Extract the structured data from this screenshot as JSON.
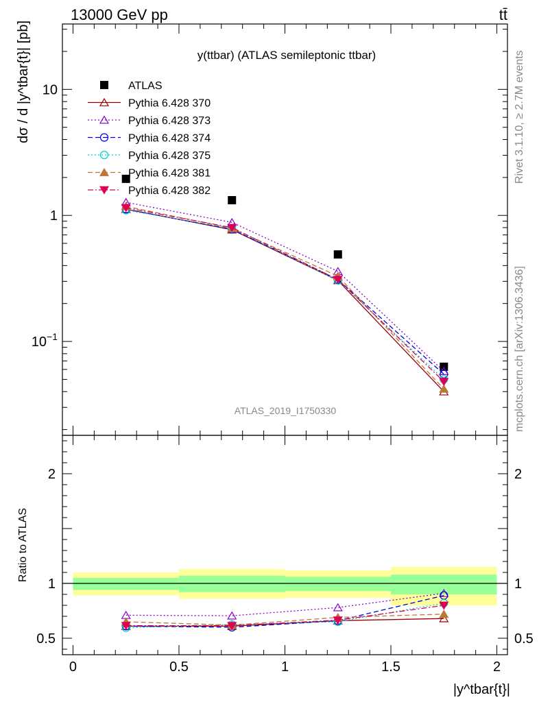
{
  "header": {
    "left": "13000 GeV pp",
    "right": "tt̄"
  },
  "side_text": {
    "rivet": "Rivet 3.1.10, ≥ 2.7M events",
    "site": "mcplots.cern.ch [arXiv:1306.3436]"
  },
  "chart_data": [
    {
      "type": "scatter",
      "title": "y(ttbar) (ATLAS semileptonic ttbar)",
      "watermark": "ATLAS_2019_I1750330",
      "ylabel": "dσ / d |y^tbar{t}| [pb]",
      "yscale": "log",
      "ylim": [
        0.018,
        33
      ],
      "xlim": [
        -0.05,
        2.05
      ],
      "yticks": [
        {
          "value": 0.1,
          "label": "10^-1"
        },
        {
          "value": 1,
          "label": "1"
        },
        {
          "value": 10,
          "label": "10"
        }
      ],
      "x": [
        0.25,
        0.75,
        1.25,
        1.75
      ],
      "series": [
        {
          "name": "ATLAS",
          "color": "#000000",
          "marker": "square-filled",
          "line": "none",
          "values": [
            1.95,
            1.32,
            0.49,
            0.063
          ]
        },
        {
          "name": "Pythia 6.428 370",
          "color": "#990000",
          "marker": "triangle-open",
          "line": "solid",
          "values": [
            1.12,
            0.77,
            0.305,
            0.04
          ]
        },
        {
          "name": "Pythia 6.428 373",
          "color": "#8800cc",
          "marker": "triangle-open",
          "line": "dotted",
          "values": [
            1.27,
            0.88,
            0.36,
            0.058
          ]
        },
        {
          "name": "Pythia 6.428 374",
          "color": "#0000dd",
          "marker": "circle-open",
          "line": "dashed",
          "values": [
            1.12,
            0.775,
            0.31,
            0.055
          ]
        },
        {
          "name": "Pythia 6.428 375",
          "color": "#00cccc",
          "marker": "circle-open",
          "line": "dotted",
          "values": [
            1.1,
            0.79,
            0.305,
            0.05
          ]
        },
        {
          "name": "Pythia 6.428 381",
          "color": "#bb7733",
          "marker": "triangle-filled",
          "line": "dashed",
          "values": [
            1.18,
            0.79,
            0.33,
            0.042
          ]
        },
        {
          "name": "Pythia 6.428 382",
          "color": "#dd0055",
          "marker": "triangle-down-filled",
          "line": "dashdot",
          "values": [
            1.15,
            0.8,
            0.31,
            0.048
          ]
        }
      ],
      "legend": "top-left"
    },
    {
      "type": "scatter",
      "ylabel": "Ratio to ATLAS",
      "xlabel": "|y^tbar{t}|",
      "ylim": [
        0.35,
        2.35
      ],
      "xlim": [
        -0.05,
        2.05
      ],
      "yticks": [
        {
          "value": 0.5,
          "label": "0.5"
        },
        {
          "value": 1,
          "label": "1"
        },
        {
          "value": 2,
          "label": "2"
        }
      ],
      "xticks": [
        {
          "value": 0,
          "label": "0"
        },
        {
          "value": 0.5,
          "label": "0.5"
        },
        {
          "value": 1,
          "label": "1"
        },
        {
          "value": 1.5,
          "label": "1.5"
        },
        {
          "value": 2,
          "label": "2"
        }
      ],
      "bands": [
        {
          "x0": 0,
          "x1": 0.5,
          "yellow": [
            0.89,
            1.1
          ],
          "green": [
            0.94,
            1.05
          ]
        },
        {
          "x0": 0.5,
          "x1": 1,
          "yellow": [
            0.86,
            1.13
          ],
          "green": [
            0.92,
            1.07
          ]
        },
        {
          "x0": 1,
          "x1": 1.5,
          "yellow": [
            0.87,
            1.12
          ],
          "green": [
            0.93,
            1.06
          ]
        },
        {
          "x0": 1.5,
          "x1": 2,
          "yellow": [
            0.8,
            1.15
          ],
          "green": [
            0.9,
            1.08
          ]
        }
      ],
      "x": [
        0.25,
        0.75,
        1.25,
        1.75
      ],
      "series": [
        {
          "name": "Pythia 6.428 370",
          "values": [
            0.61,
            0.61,
            0.66,
            0.68
          ]
        },
        {
          "name": "Pythia 6.428 373",
          "values": [
            0.71,
            0.705,
            0.78,
            0.91
          ]
        },
        {
          "name": "Pythia 6.428 374",
          "values": [
            0.61,
            0.6,
            0.66,
            0.89
          ]
        },
        {
          "name": "Pythia 6.428 375",
          "values": [
            0.595,
            0.625,
            0.65,
            0.82
          ]
        },
        {
          "name": "Pythia 6.428 381",
          "values": [
            0.65,
            0.62,
            0.69,
            0.72
          ]
        },
        {
          "name": "Pythia 6.428 382",
          "values": [
            0.615,
            0.615,
            0.665,
            0.8
          ]
        }
      ]
    }
  ]
}
